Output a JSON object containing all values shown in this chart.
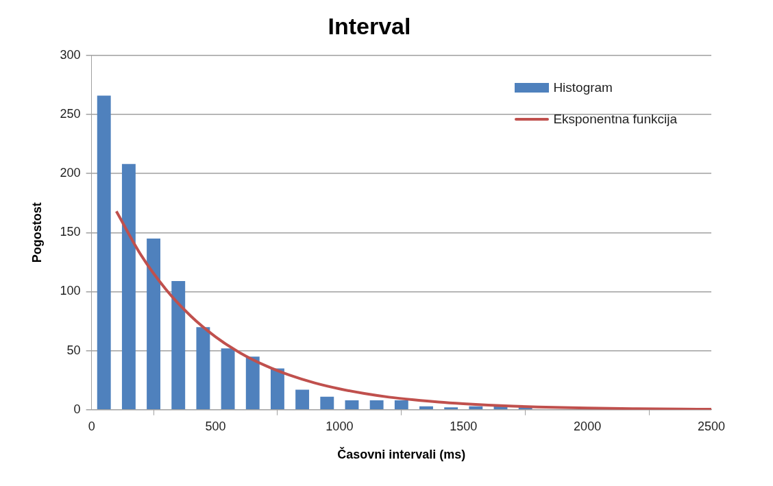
{
  "chart_data": {
    "type": "histogram",
    "title": "Interval",
    "xlabel": "Časovni intervali (ms)",
    "ylabel": "Pogostost",
    "bins": [
      0,
      100,
      200,
      300,
      400,
      500,
      600,
      700,
      800,
      900,
      1000,
      1100,
      1200,
      1300,
      1400,
      1500,
      1600,
      1700,
      1800
    ],
    "series": [
      {
        "name": "Histogram",
        "color": "#4f81bd",
        "values": [
          266,
          208,
          145,
          109,
          70,
          52,
          45,
          35,
          17,
          11,
          8,
          8,
          8,
          3,
          2,
          3,
          3,
          2
        ]
      },
      {
        "name": "Eksponentna funkcija",
        "type": "line",
        "color": "#c0504d",
        "x": [
          100,
          200,
          300,
          400,
          500,
          600,
          700,
          800,
          900,
          1000,
          1100,
          1200,
          1300,
          1400,
          1500,
          1600,
          1700,
          1800,
          2000,
          2200,
          2500
        ],
        "values": [
          168,
          130.8,
          101.9,
          79.4,
          61.8,
          48.1,
          37.5,
          29.2,
          22.7,
          17.7,
          13.8,
          10.7,
          8.4,
          6.5,
          5.1,
          4.0,
          3.1,
          2.4,
          1.5,
          0.9,
          0.4
        ]
      }
    ],
    "xlim": [
      0,
      2500
    ],
    "xticks": [
      0,
      500,
      1000,
      1500,
      2000,
      2500
    ],
    "ylim": [
      0,
      300
    ],
    "yticks": [
      0,
      50,
      100,
      150,
      200,
      250,
      300
    ],
    "grid": "y",
    "legend": "top right",
    "marker": "none"
  }
}
